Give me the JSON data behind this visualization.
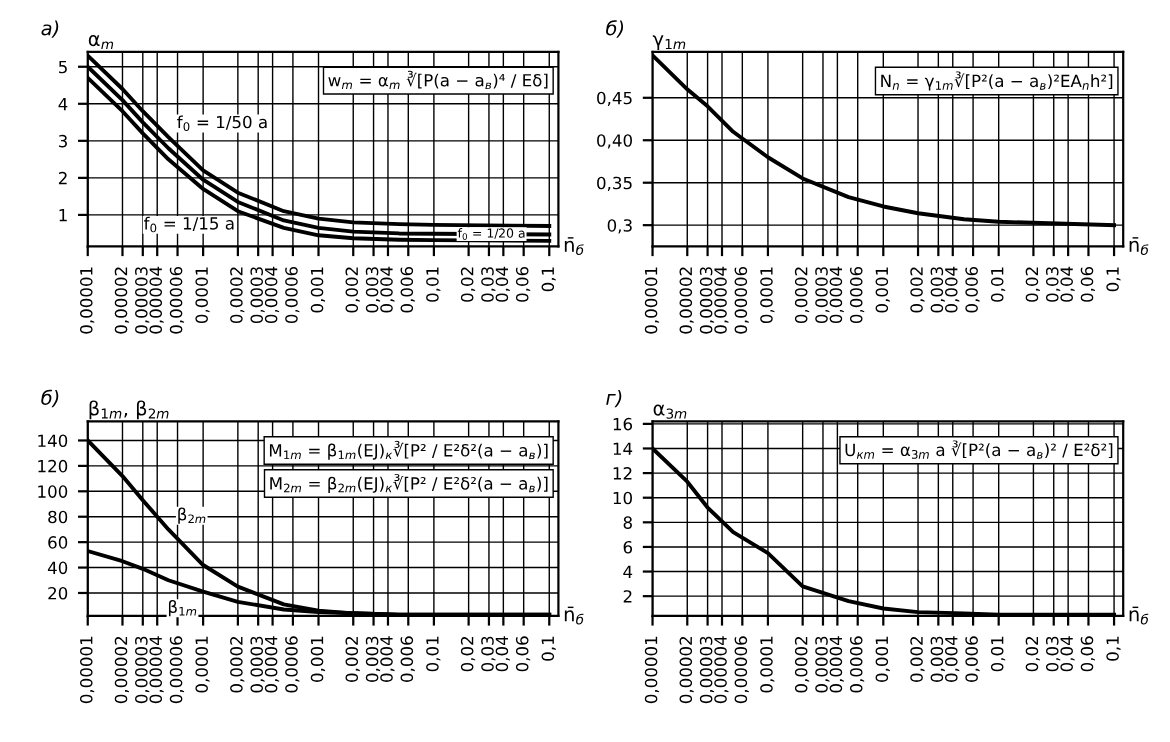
{
  "chart_data": [
    {
      "type": "line",
      "title": "а)",
      "ylabel": "α$_{m}$",
      "xlabel": "n̄$_{б}$",
      "log": "x",
      "grid": true,
      "annotations": [
        "w$_{m}$ = α$_{m}$ ∛[P(a − a$_{в}$)⁴ / Eδ]"
      ],
      "x": [
        1e-05,
        2e-05,
        3e-05,
        5e-05,
        0.0001,
        0.0002,
        0.0005,
        0.001,
        0.002,
        0.005,
        0.01,
        0.1
      ],
      "series": [
        {
          "name": "f$_{0}$ = 1/50 a",
          "color": "#000000",
          "values": [
            5.3,
            4.4,
            3.8,
            3.1,
            2.2,
            1.6,
            1.1,
            0.9,
            0.8,
            0.75,
            0.73,
            0.7
          ]
        },
        {
          "name": "f$_{0}$ = 1/20 a",
          "color": "#000000",
          "values": [
            5.0,
            4.1,
            3.5,
            2.8,
            1.95,
            1.35,
            0.85,
            0.65,
            0.55,
            0.5,
            0.49,
            0.47
          ]
        },
        {
          "name": "f$_{0}$ = 1/15 a",
          "color": "#000000",
          "values": [
            4.7,
            3.8,
            3.2,
            2.5,
            1.7,
            1.1,
            0.65,
            0.45,
            0.37,
            0.33,
            0.32,
            0.3
          ]
        }
      ],
      "xlim": [
        1e-05,
        0.12
      ],
      "ylim": [
        0.15,
        5.4
      ],
      "yticks": [
        1,
        2,
        3,
        4,
        5
      ],
      "xticks": [
        {
          "value": 1e-05,
          "label": "0,00001"
        },
        {
          "value": 2e-05,
          "label": "0,00002"
        },
        {
          "value": 3e-05,
          "label": "0,00003"
        },
        {
          "value": 4e-05,
          "label": "0,00004"
        },
        {
          "value": 6e-05,
          "label": "0,00006"
        },
        {
          "value": 0.0001,
          "label": "0,0001"
        },
        {
          "value": 0.0002,
          "label": "0,0002"
        },
        {
          "value": 0.0003,
          "label": "0,0003"
        },
        {
          "value": 0.0004,
          "label": "0,0004"
        },
        {
          "value": 0.0006,
          "label": "0,0006"
        },
        {
          "value": 0.001,
          "label": "0,001"
        },
        {
          "value": 0.002,
          "label": "0,002"
        },
        {
          "value": 0.003,
          "label": "0,003"
        },
        {
          "value": 0.004,
          "label": "0,004"
        },
        {
          "value": 0.006,
          "label": "0,006"
        },
        {
          "value": 0.01,
          "label": "0,01"
        },
        {
          "value": 0.02,
          "label": "0,02"
        },
        {
          "value": 0.03,
          "label": "0,03"
        },
        {
          "value": 0.04,
          "label": "0,04"
        },
        {
          "value": 0.06,
          "label": "0,06"
        },
        {
          "value": 0.1,
          "label": "0,1"
        }
      ]
    },
    {
      "type": "line",
      "title": "б)",
      "ylabel": "γ$_{1m}$",
      "xlabel": "n̄$_{б}$",
      "log": "x",
      "grid": true,
      "annotations": [
        "N$_{n}$ = γ$_{1m}$∛[P²(a − a$_{в}$)²EA$_{n}$h²]"
      ],
      "x": [
        1e-05,
        2e-05,
        3e-05,
        5e-05,
        0.0001,
        0.0002,
        0.0005,
        0.001,
        0.002,
        0.005,
        0.01,
        0.1
      ],
      "series": [
        {
          "color": "#000000",
          "values": [
            0.5,
            0.46,
            0.44,
            0.41,
            0.38,
            0.355,
            0.333,
            0.322,
            0.314,
            0.307,
            0.304,
            0.3
          ]
        }
      ],
      "xlim": [
        1e-05,
        0.12
      ],
      "ylim": [
        0.275,
        0.504
      ],
      "yticks": [
        {
          "value": 0.3,
          "label": "0,3"
        },
        {
          "value": 0.35,
          "label": "0,35"
        },
        {
          "value": 0.4,
          "label": "0,40"
        },
        {
          "value": 0.45,
          "label": "0,45"
        }
      ],
      "xticks": [
        {
          "value": 1e-05,
          "label": "0,00001"
        },
        {
          "value": 2e-05,
          "label": "0,00002"
        },
        {
          "value": 3e-05,
          "label": "0,00003"
        },
        {
          "value": 4e-05,
          "label": "0,00004"
        },
        {
          "value": 6e-05,
          "label": "0,00006"
        },
        {
          "value": 0.0001,
          "label": "0,0001"
        },
        {
          "value": 0.0002,
          "label": "0,0002"
        },
        {
          "value": 0.0003,
          "label": "0,0003"
        },
        {
          "value": 0.0004,
          "label": "0,0004"
        },
        {
          "value": 0.0006,
          "label": "0,0006"
        },
        {
          "value": 0.001,
          "label": "0,001"
        },
        {
          "value": 0.002,
          "label": "0,002"
        },
        {
          "value": 0.003,
          "label": "0,003"
        },
        {
          "value": 0.004,
          "label": "0,004"
        },
        {
          "value": 0.006,
          "label": "0,006"
        },
        {
          "value": 0.01,
          "label": "0,01"
        },
        {
          "value": 0.02,
          "label": "0,02"
        },
        {
          "value": 0.03,
          "label": "0,03"
        },
        {
          "value": 0.04,
          "label": "0,04"
        },
        {
          "value": 0.06,
          "label": "0,06"
        },
        {
          "value": 0.1,
          "label": "0,1"
        }
      ]
    },
    {
      "type": "line",
      "title": "б)",
      "ylabel": "β$_{1m}$, β$_{2m}$",
      "xlabel": "n̄$_{б}$",
      "log": "x",
      "grid": true,
      "annotations": [
        "M$_{1m}$ = β$_{1m}$(EJ)$_{к}$∛[P² / E²δ²(a − a$_{в}$)]",
        "M$_{2m}$ = β$_{2m}$(EJ)$_{к}$∛[P² / E²δ²(a − a$_{в}$)]"
      ],
      "x": [
        1e-05,
        2e-05,
        3e-05,
        5e-05,
        0.0001,
        0.0002,
        0.0005,
        0.001,
        0.002,
        0.005,
        0.01,
        0.1
      ],
      "series": [
        {
          "name": "β$_{2m}$",
          "color": "#000000",
          "values": [
            140,
            112,
            93,
            70,
            42,
            25,
            11,
            6,
            4,
            3,
            3,
            3
          ]
        },
        {
          "name": "β$_{1m}$",
          "color": "#000000",
          "values": [
            53,
            45,
            39,
            30,
            21,
            13,
            7,
            5,
            4,
            3,
            3,
            3
          ]
        }
      ],
      "xlim": [
        1e-05,
        0.12
      ],
      "ylim": [
        2,
        155
      ],
      "yticks": [
        20,
        40,
        60,
        80,
        100,
        120,
        140
      ],
      "xticks": [
        {
          "value": 1e-05,
          "label": "0,00001"
        },
        {
          "value": 2e-05,
          "label": "0,00002"
        },
        {
          "value": 3e-05,
          "label": "0,00003"
        },
        {
          "value": 4e-05,
          "label": "0,00004"
        },
        {
          "value": 6e-05,
          "label": "0,00006"
        },
        {
          "value": 0.0001,
          "label": "0,0001"
        },
        {
          "value": 0.0002,
          "label": "0,0002"
        },
        {
          "value": 0.0003,
          "label": "0,0003"
        },
        {
          "value": 0.0004,
          "label": "0,0004"
        },
        {
          "value": 0.0006,
          "label": "0,0006"
        },
        {
          "value": 0.001,
          "label": "0,001"
        },
        {
          "value": 0.002,
          "label": "0,002"
        },
        {
          "value": 0.003,
          "label": "0,003"
        },
        {
          "value": 0.004,
          "label": "0,004"
        },
        {
          "value": 0.006,
          "label": "0,006"
        },
        {
          "value": 0.01,
          "label": "0,01"
        },
        {
          "value": 0.02,
          "label": "0,02"
        },
        {
          "value": 0.03,
          "label": "0,03"
        },
        {
          "value": 0.04,
          "label": "0,04"
        },
        {
          "value": 0.06,
          "label": "0,06"
        },
        {
          "value": 0.1,
          "label": "0,1"
        }
      ]
    },
    {
      "type": "line",
      "title": "г)",
      "ylabel": "α$_{3m}$",
      "xlabel": "n̄$_{б}$",
      "log": "x",
      "grid": true,
      "annotations": [
        "U$_{кm}$ = α$_{3m}$ a ∛[P²(a − a$_{в}$)² / E²δ²]"
      ],
      "x": [
        1e-05,
        2e-05,
        3e-05,
        5e-05,
        0.0001,
        0.0002,
        0.0005,
        0.001,
        0.002,
        0.005,
        0.01,
        0.1
      ],
      "series": [
        {
          "color": "#000000",
          "values": [
            14,
            11.3,
            9.2,
            7.2,
            5.5,
            2.8,
            1.6,
            1.0,
            0.7,
            0.6,
            0.5,
            0.5
          ]
        }
      ],
      "xlim": [
        1e-05,
        0.12
      ],
      "ylim": [
        0.4,
        16.2
      ],
      "yticks": [
        2,
        4,
        6,
        8,
        10,
        12,
        14,
        16
      ],
      "xticks": [
        {
          "value": 1e-05,
          "label": "0,00001"
        },
        {
          "value": 2e-05,
          "label": "0,00002"
        },
        {
          "value": 3e-05,
          "label": "0,00003"
        },
        {
          "value": 4e-05,
          "label": "0,00004"
        },
        {
          "value": 6e-05,
          "label": "0,00006"
        },
        {
          "value": 0.0001,
          "label": "0,0001"
        },
        {
          "value": 0.0002,
          "label": "0,0002"
        },
        {
          "value": 0.0003,
          "label": "0,0003"
        },
        {
          "value": 0.0004,
          "label": "0,0004"
        },
        {
          "value": 0.0006,
          "label": "0,0006"
        },
        {
          "value": 0.001,
          "label": "0,001"
        },
        {
          "value": 0.002,
          "label": "0,002"
        },
        {
          "value": 0.003,
          "label": "0,003"
        },
        {
          "value": 0.004,
          "label": "0,004"
        },
        {
          "value": 0.006,
          "label": "0,006"
        },
        {
          "value": 0.01,
          "label": "0,01"
        },
        {
          "value": 0.02,
          "label": "0,02"
        },
        {
          "value": 0.03,
          "label": "0,03"
        },
        {
          "value": 0.04,
          "label": "0,04"
        },
        {
          "value": 0.06,
          "label": "0,06"
        },
        {
          "value": 0.1,
          "label": "0,1"
        }
      ]
    }
  ]
}
